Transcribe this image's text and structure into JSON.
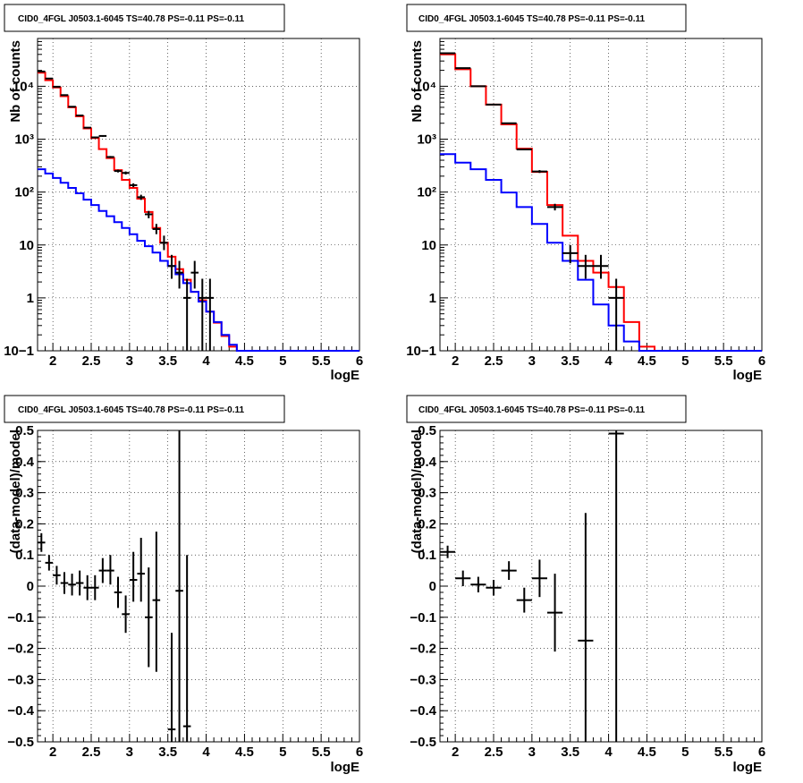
{
  "charts": [
    {
      "title": "CID0_4FGL J0503.1-6045 TS=40.78 PS=-0.11 PS=-0.11",
      "xlabel": "logE",
      "ylabel": "Nb of counts",
      "y_scale": "log",
      "x_ticks": [
        "2",
        "2.5",
        "3",
        "3.5",
        "4",
        "4.5",
        "5",
        "5.5",
        "6"
      ],
      "y_ticks": [
        "10−1",
        "1",
        "10",
        "10²",
        "10³",
        "10⁴"
      ]
    },
    {
      "title": "CID0_4FGL J0503.1-6045 TS=40.78 PS=-0.11 PS=-0.11",
      "xlabel": "logE",
      "ylabel": "Nb of counts",
      "y_scale": "log",
      "x_ticks": [
        "2",
        "2.5",
        "3",
        "3.5",
        "4",
        "4.5",
        "5",
        "5.5",
        "6"
      ],
      "y_ticks": [
        "10−1",
        "1",
        "10",
        "10²",
        "10³",
        "10⁴"
      ]
    },
    {
      "title": "CID0_4FGL J0503.1-6045 TS=40.78 PS=-0.11 PS=-0.11",
      "xlabel": "logE",
      "ylabel": "(data-model)/model",
      "y_scale": "linear",
      "x_ticks": [
        "2",
        "2.5",
        "3",
        "3.5",
        "4",
        "4.5",
        "5",
        "5.5",
        "6"
      ],
      "y_ticks": [
        "−0.5",
        "−0.4",
        "−0.3",
        "−0.2",
        "−0.1",
        "0",
        "0.1",
        "0.2",
        "0.3",
        "0.4",
        "0.5"
      ]
    },
    {
      "title": "CID0_4FGL J0503.1-6045 TS=40.78 PS=-0.11 PS=-0.11",
      "xlabel": "logE",
      "ylabel": "(data-model)/model",
      "y_scale": "linear",
      "x_ticks": [
        "2",
        "2.5",
        "3",
        "3.5",
        "4",
        "4.5",
        "5",
        "5.5",
        "6"
      ],
      "y_ticks": [
        "−0.5",
        "−0.4",
        "−0.3",
        "−0.2",
        "−0.1",
        "0",
        "0.1",
        "0.2",
        "0.3",
        "0.4",
        "0.5"
      ]
    }
  ],
  "chart_data": [
    {
      "type": "line",
      "xlim": [
        1.8,
        6.0
      ],
      "ylim": [
        0.1,
        80000
      ],
      "grid": true,
      "legend": "none",
      "series": [
        {
          "kind": "hist",
          "color": "#ff0000",
          "edges": [
            1.8,
            1.9,
            2.0,
            2.1,
            2.2,
            2.3,
            2.4,
            2.5,
            2.6,
            2.7,
            2.8,
            2.9,
            3.0,
            3.1,
            3.2,
            3.3,
            3.4,
            3.5,
            3.6,
            3.7,
            3.8,
            3.9,
            4.0,
            4.1,
            4.2,
            4.3,
            4.4,
            4.5,
            4.6,
            4.7,
            4.8,
            4.9,
            5.0,
            5.1,
            5.2,
            5.3,
            5.4,
            5.5,
            5.6,
            5.7,
            5.8,
            5.9,
            6.0
          ],
          "values": [
            18000,
            13000,
            9500,
            6500,
            4000,
            2700,
            1600,
            1050,
            650,
            440,
            260,
            170,
            120,
            75,
            42,
            21,
            11,
            6,
            3.5,
            2.2,
            1.3,
            0.9,
            0.55,
            0.34,
            0.19,
            0.12,
            0.1,
            0.1,
            0.1,
            0.1,
            0.1,
            0.1,
            0.1,
            0.1,
            0.1,
            0.1,
            0.1,
            0.1,
            0.1,
            0.1,
            0.1,
            0.1
          ]
        },
        {
          "kind": "hist",
          "color": "#0000ff",
          "edges": [
            1.8,
            1.9,
            2.0,
            2.1,
            2.2,
            2.3,
            2.4,
            2.5,
            2.6,
            2.7,
            2.8,
            2.9,
            3.0,
            3.1,
            3.2,
            3.3,
            3.4,
            3.5,
            3.6,
            3.7,
            3.8,
            3.9,
            4.0,
            4.1,
            4.2,
            4.3,
            4.4,
            4.5,
            4.6,
            4.7,
            4.8,
            4.9,
            5.0,
            5.1,
            5.2,
            5.3,
            5.4,
            5.5,
            5.6,
            5.7,
            5.8,
            5.9,
            6.0
          ],
          "values": [
            270,
            225,
            185,
            150,
            120,
            95,
            72,
            57,
            44,
            35,
            27,
            21,
            16,
            12,
            9.5,
            7.2,
            5,
            4,
            2.8,
            1.9,
            1.3,
            0.85,
            0.55,
            0.35,
            0.2,
            0.13,
            0.1,
            0.1,
            0.1,
            0.1,
            0.1,
            0.1,
            0.1,
            0.1,
            0.1,
            0.1,
            0.1,
            0.1,
            0.1,
            0.1,
            0.1,
            0.1
          ]
        },
        {
          "kind": "points",
          "color": "#000000",
          "points": [
            {
              "x": 1.85,
              "y": 19000,
              "xerr": 0.05,
              "ylo": 18800,
              "yhi": 19200
            },
            {
              "x": 1.95,
              "y": 14000,
              "xerr": 0.05,
              "ylo": 13850,
              "yhi": 14150
            },
            {
              "x": 2.05,
              "y": 9800,
              "xerr": 0.05,
              "ylo": 9700,
              "yhi": 9900
            },
            {
              "x": 2.15,
              "y": 6800,
              "xerr": 0.05,
              "ylo": 6720,
              "yhi": 6880
            },
            {
              "x": 2.25,
              "y": 4100,
              "xerr": 0.05,
              "ylo": 4040,
              "yhi": 4160
            },
            {
              "x": 2.35,
              "y": 2800,
              "xerr": 0.05,
              "ylo": 2750,
              "yhi": 2850
            },
            {
              "x": 2.45,
              "y": 1650,
              "xerr": 0.05,
              "ylo": 1610,
              "yhi": 1690
            },
            {
              "x": 2.55,
              "y": 1080,
              "xerr": 0.05,
              "ylo": 1050,
              "yhi": 1110
            },
            {
              "x": 2.65,
              "y": 1150,
              "xerr": 0.05,
              "ylo": 1110,
              "yhi": 1190
            },
            {
              "x": 2.75,
              "y": 460,
              "xerr": 0.05,
              "ylo": 440,
              "yhi": 480
            },
            {
              "x": 2.85,
              "y": 250,
              "xerr": 0.05,
              "ylo": 235,
              "yhi": 265
            },
            {
              "x": 2.95,
              "y": 230,
              "xerr": 0.05,
              "ylo": 215,
              "yhi": 245
            },
            {
              "x": 3.05,
              "y": 135,
              "xerr": 0.05,
              "ylo": 124,
              "yhi": 146
            },
            {
              "x": 3.15,
              "y": 80,
              "xerr": 0.05,
              "ylo": 71,
              "yhi": 89
            },
            {
              "x": 3.25,
              "y": 38,
              "xerr": 0.05,
              "ylo": 32,
              "yhi": 44
            },
            {
              "x": 3.35,
              "y": 20,
              "xerr": 0.05,
              "ylo": 16,
              "yhi": 25
            },
            {
              "x": 3.45,
              "y": 11,
              "xerr": 0.05,
              "ylo": 8,
              "yhi": 15
            },
            {
              "x": 3.55,
              "y": 4,
              "xerr": 0.05,
              "ylo": 2.3,
              "yhi": 6.5
            },
            {
              "x": 3.65,
              "y": 3,
              "xerr": 0.05,
              "ylo": 1.5,
              "yhi": 5
            },
            {
              "x": 3.75,
              "y": 1,
              "xerr": 0.05,
              "ylo": 0.1,
              "yhi": 2.3
            },
            {
              "x": 3.85,
              "y": 3,
              "xerr": 0.05,
              "ylo": 1.5,
              "yhi": 5
            },
            {
              "x": 3.95,
              "y": 1,
              "xerr": 0.05,
              "ylo": 0.1,
              "yhi": 2.3
            },
            {
              "x": 4.05,
              "y": 1,
              "xerr": 0.05,
              "ylo": 0.1,
              "yhi": 2.3
            }
          ]
        }
      ]
    },
    {
      "type": "line",
      "xlim": [
        1.8,
        6.0
      ],
      "ylim": [
        0.1,
        80000
      ],
      "grid": true,
      "legend": "none",
      "series": [
        {
          "kind": "hist",
          "color": "#ff0000",
          "edges": [
            1.8,
            2.0,
            2.2,
            2.4,
            2.6,
            2.8,
            3.0,
            3.2,
            3.4,
            3.6,
            3.8,
            4.0,
            4.2,
            4.4,
            4.6,
            4.8,
            5.0,
            5.2,
            5.4,
            5.6,
            5.8,
            6.0
          ],
          "values": [
            40000,
            21000,
            10000,
            4500,
            1900,
            660,
            240,
            57,
            15,
            5,
            3,
            1.6,
            0.35,
            0.12,
            0.1,
            0.1,
            0.1,
            0.1,
            0.1,
            0.1,
            0.1
          ]
        },
        {
          "kind": "hist",
          "color": "#0000ff",
          "edges": [
            1.8,
            2.0,
            2.2,
            2.4,
            2.6,
            2.8,
            3.0,
            3.2,
            3.4,
            3.6,
            3.8,
            4.0,
            4.2,
            4.4,
            4.6,
            4.8,
            5.0,
            5.2,
            5.4,
            5.6,
            5.8,
            6.0
          ],
          "values": [
            520,
            360,
            270,
            170,
            98,
            52,
            25,
            11,
            5,
            2.2,
            0.75,
            0.3,
            0.15,
            0.1,
            0.1,
            0.1,
            0.1,
            0.1,
            0.1,
            0.1,
            0.1
          ]
        },
        {
          "kind": "points",
          "color": "#000000",
          "points": [
            {
              "x": 1.9,
              "y": 42000,
              "xerr": 0.1,
              "ylo": 41800,
              "yhi": 42200
            },
            {
              "x": 2.1,
              "y": 22000,
              "xerr": 0.1,
              "ylo": 21850,
              "yhi": 22150
            },
            {
              "x": 2.3,
              "y": 10000,
              "xerr": 0.1,
              "ylo": 9900,
              "yhi": 10100
            },
            {
              "x": 2.5,
              "y": 4500,
              "xerr": 0.1,
              "ylo": 4430,
              "yhi": 4570
            },
            {
              "x": 2.7,
              "y": 2000,
              "xerr": 0.1,
              "ylo": 1950,
              "yhi": 2050
            },
            {
              "x": 2.9,
              "y": 640,
              "xerr": 0.1,
              "ylo": 615,
              "yhi": 665
            },
            {
              "x": 3.1,
              "y": 245,
              "xerr": 0.1,
              "ylo": 230,
              "yhi": 260
            },
            {
              "x": 3.3,
              "y": 52,
              "xerr": 0.1,
              "ylo": 45,
              "yhi": 60
            },
            {
              "x": 3.5,
              "y": 7,
              "xerr": 0.1,
              "ylo": 4.5,
              "yhi": 10
            },
            {
              "x": 3.7,
              "y": 4,
              "xerr": 0.1,
              "ylo": 2.3,
              "yhi": 6.5
            },
            {
              "x": 3.9,
              "y": 4,
              "xerr": 0.1,
              "ylo": 2.3,
              "yhi": 6.5
            },
            {
              "x": 4.1,
              "y": 1,
              "xerr": 0.1,
              "ylo": 0.1,
              "yhi": 2.3
            }
          ]
        }
      ]
    },
    {
      "type": "scatter",
      "xlim": [
        1.8,
        6.0
      ],
      "ylim": [
        -0.5,
        0.5
      ],
      "grid": true,
      "legend": "none",
      "series": [
        {
          "kind": "points",
          "color": "#000000",
          "points": [
            {
              "x": 1.85,
              "y": 0.14,
              "xerr": 0.05,
              "ylo": 0.11,
              "yhi": 0.17
            },
            {
              "x": 1.95,
              "y": 0.075,
              "xerr": 0.05,
              "ylo": 0.05,
              "yhi": 0.1
            },
            {
              "x": 2.05,
              "y": 0.035,
              "xerr": 0.05,
              "ylo": 0.005,
              "yhi": 0.065
            },
            {
              "x": 2.15,
              "y": 0.01,
              "xerr": 0.05,
              "ylo": -0.025,
              "yhi": 0.045
            },
            {
              "x": 2.25,
              "y": 0.005,
              "xerr": 0.05,
              "ylo": -0.03,
              "yhi": 0.04
            },
            {
              "x": 2.35,
              "y": 0.01,
              "xerr": 0.05,
              "ylo": -0.03,
              "yhi": 0.05
            },
            {
              "x": 2.45,
              "y": -0.005,
              "xerr": 0.05,
              "ylo": -0.045,
              "yhi": 0.035
            },
            {
              "x": 2.55,
              "y": -0.005,
              "xerr": 0.05,
              "ylo": -0.045,
              "yhi": 0.035
            },
            {
              "x": 2.65,
              "y": 0.05,
              "xerr": 0.05,
              "ylo": 0.01,
              "yhi": 0.09
            },
            {
              "x": 2.75,
              "y": 0.05,
              "xerr": 0.05,
              "ylo": 0.005,
              "yhi": 0.1
            },
            {
              "x": 2.85,
              "y": -0.02,
              "xerr": 0.05,
              "ylo": -0.07,
              "yhi": 0.03
            },
            {
              "x": 2.95,
              "y": -0.09,
              "xerr": 0.05,
              "ylo": -0.15,
              "yhi": -0.03
            },
            {
              "x": 3.05,
              "y": 0.02,
              "xerr": 0.05,
              "ylo": -0.05,
              "yhi": 0.11
            },
            {
              "x": 3.15,
              "y": 0.04,
              "xerr": 0.05,
              "ylo": -0.05,
              "yhi": 0.155
            },
            {
              "x": 3.25,
              "y": -0.1,
              "xerr": 0.05,
              "ylo": -0.26,
              "yhi": 0.06
            },
            {
              "x": 3.35,
              "y": -0.045,
              "xerr": 0.05,
              "ylo": -0.275,
              "yhi": 0.175
            },
            {
              "x": 3.55,
              "y": -0.46,
              "xerr": 0.05,
              "ylo": -0.5,
              "yhi": -0.15
            },
            {
              "x": 3.65,
              "y": -0.015,
              "xerr": 0.05,
              "ylo": -0.5,
              "yhi": 0.5
            },
            {
              "x": 3.75,
              "y": -0.45,
              "xerr": 0.05,
              "ylo": -0.5,
              "yhi": 0.1
            }
          ]
        }
      ]
    },
    {
      "type": "scatter",
      "xlim": [
        1.8,
        6.0
      ],
      "ylim": [
        -0.5,
        0.5
      ],
      "grid": true,
      "legend": "none",
      "series": [
        {
          "kind": "points",
          "color": "#000000",
          "points": [
            {
              "x": 1.9,
              "y": 0.11,
              "xerr": 0.1,
              "ylo": 0.09,
              "yhi": 0.13
            },
            {
              "x": 2.1,
              "y": 0.025,
              "xerr": 0.1,
              "ylo": 0.0,
              "yhi": 0.05
            },
            {
              "x": 2.3,
              "y": 0.005,
              "xerr": 0.1,
              "ylo": -0.02,
              "yhi": 0.03
            },
            {
              "x": 2.5,
              "y": -0.005,
              "xerr": 0.1,
              "ylo": -0.03,
              "yhi": 0.02
            },
            {
              "x": 2.7,
              "y": 0.05,
              "xerr": 0.1,
              "ylo": 0.02,
              "yhi": 0.08
            },
            {
              "x": 2.9,
              "y": -0.045,
              "xerr": 0.1,
              "ylo": -0.085,
              "yhi": -0.005
            },
            {
              "x": 3.1,
              "y": 0.025,
              "xerr": 0.1,
              "ylo": -0.035,
              "yhi": 0.085
            },
            {
              "x": 3.3,
              "y": -0.085,
              "xerr": 0.1,
              "ylo": -0.21,
              "yhi": 0.04
            },
            {
              "x": 3.7,
              "y": -0.175,
              "xerr": 0.1,
              "ylo": -0.5,
              "yhi": 0.235
            },
            {
              "x": 4.1,
              "y": 0.49,
              "xerr": 0.1,
              "ylo": -0.5,
              "yhi": 0.5
            }
          ]
        }
      ]
    }
  ]
}
